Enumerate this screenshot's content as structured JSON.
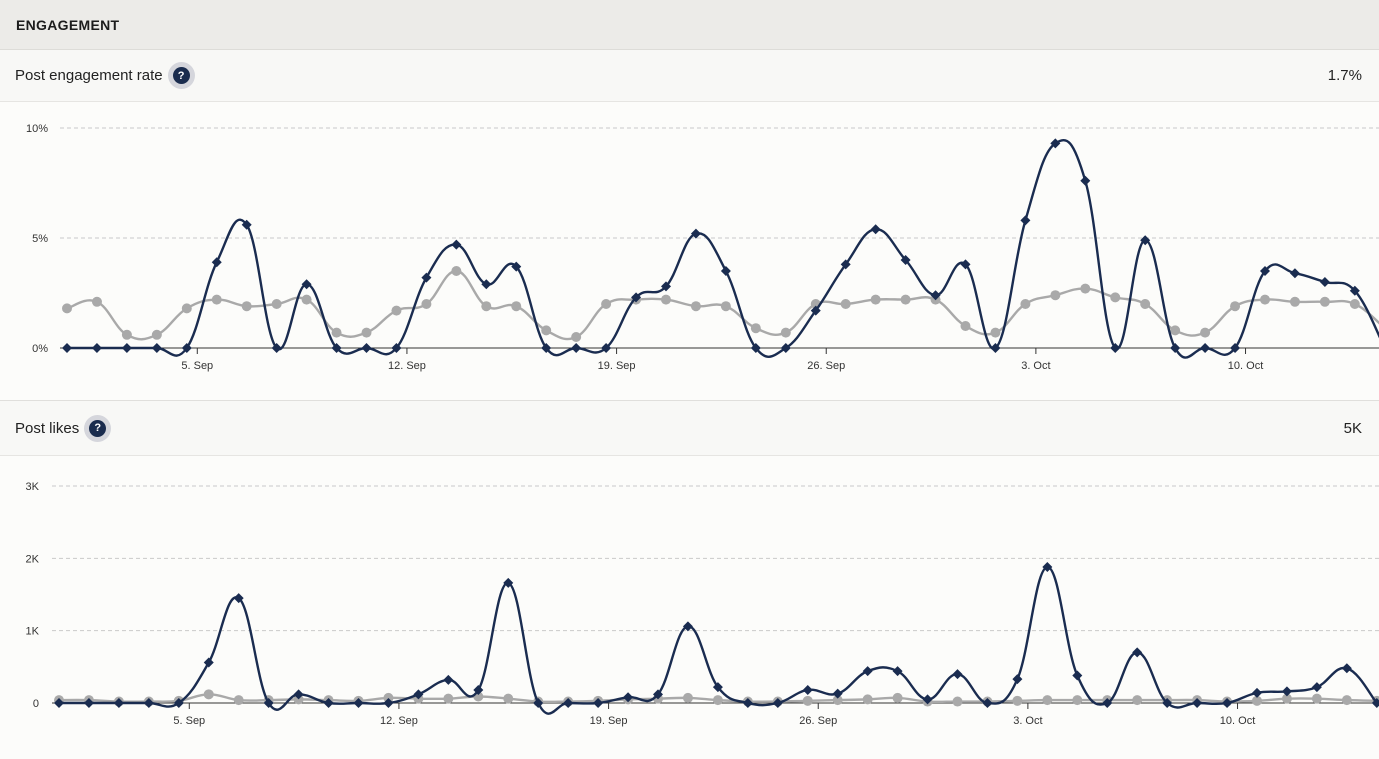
{
  "section": {
    "title": "ENGAGEMENT"
  },
  "metrics": [
    {
      "label": "Post engagement rate",
      "value": "1.7%",
      "help_icon": "question-circle-icon"
    },
    {
      "label": "Post likes",
      "value": "5K",
      "help_icon": "question-circle-icon"
    }
  ],
  "colors": {
    "primary": "#1a2c50",
    "comparison": "#a9a9a9",
    "help_bg": "#d5d6dc"
  },
  "chart_data": [
    {
      "type": "line",
      "title": "Post engagement rate",
      "x_tick_labels": [
        "5. Sep",
        "12. Sep",
        "19. Sep",
        "26. Sep",
        "3. Oct",
        "10. Oct"
      ],
      "y_tick_labels": [
        "0%",
        "5%",
        "10%"
      ],
      "ylim": [
        0,
        10
      ],
      "grid": true,
      "x": [
        "1 Sep",
        "2 Sep",
        "3 Sep",
        "4 Sep",
        "5 Sep",
        "6 Sep",
        "7 Sep",
        "8 Sep",
        "9 Sep",
        "10 Sep",
        "11 Sep",
        "12 Sep",
        "13 Sep",
        "14 Sep",
        "15 Sep",
        "16 Sep",
        "17 Sep",
        "18 Sep",
        "19 Sep",
        "20 Sep",
        "21 Sep",
        "22 Sep",
        "23 Sep",
        "24 Sep",
        "25 Sep",
        "26 Sep",
        "27 Sep",
        "28 Sep",
        "29 Sep",
        "30 Sep",
        "1 Oct",
        "2 Oct",
        "3 Oct",
        "4 Oct",
        "5 Oct",
        "6 Oct",
        "7 Oct",
        "8 Oct",
        "9 Oct",
        "10 Oct",
        "11 Oct",
        "12 Oct",
        "13 Oct",
        "14 Oct",
        "15 Oct"
      ],
      "series": [
        {
          "marker": "diamond",
          "color": "#1a2c50",
          "values": [
            0,
            0,
            0,
            0,
            0,
            3.9,
            5.6,
            0,
            2.9,
            0,
            0,
            0,
            3.2,
            4.7,
            2.9,
            3.7,
            0,
            0,
            0,
            2.3,
            2.8,
            5.2,
            3.5,
            0,
            0,
            1.7,
            3.8,
            5.4,
            4.0,
            2.4,
            3.8,
            0,
            5.8,
            9.3,
            7.6,
            0,
            4.9,
            0,
            0,
            0,
            3.5,
            3.4,
            3.0,
            2.6,
            0
          ]
        },
        {
          "marker": "circle",
          "color": "#a9a9a9",
          "values": [
            1.8,
            2.1,
            0.6,
            0.6,
            1.8,
            2.2,
            1.9,
            2.0,
            2.2,
            0.7,
            0.7,
            1.7,
            2.0,
            3.5,
            1.9,
            1.9,
            0.8,
            0.5,
            2.0,
            2.2,
            2.2,
            1.9,
            1.9,
            0.9,
            0.7,
            2.0,
            2.0,
            2.2,
            2.2,
            2.2,
            1.0,
            0.7,
            2.0,
            2.4,
            2.7,
            2.3,
            2.0,
            0.8,
            0.7,
            1.9,
            2.2,
            2.1,
            2.1,
            2.0,
            0.9
          ]
        }
      ]
    },
    {
      "type": "line",
      "title": "Post likes",
      "x_tick_labels": [
        "5. Sep",
        "12. Sep",
        "19. Sep",
        "26. Sep",
        "3. Oct",
        "10. Oct"
      ],
      "y_tick_labels": [
        "0",
        "1K",
        "2K",
        "3K"
      ],
      "ylim": [
        0,
        3000
      ],
      "grid": true,
      "x": [
        "1 Sep",
        "2 Sep",
        "3 Sep",
        "4 Sep",
        "5 Sep",
        "6 Sep",
        "7 Sep",
        "8 Sep",
        "9 Sep",
        "10 Sep",
        "11 Sep",
        "12 Sep",
        "13 Sep",
        "14 Sep",
        "15 Sep",
        "16 Sep",
        "17 Sep",
        "18 Sep",
        "19 Sep",
        "20 Sep",
        "21 Sep",
        "22 Sep",
        "23 Sep",
        "24 Sep",
        "25 Sep",
        "26 Sep",
        "27 Sep",
        "28 Sep",
        "29 Sep",
        "30 Sep",
        "1 Oct",
        "2 Oct",
        "3 Oct",
        "4 Oct",
        "5 Oct",
        "6 Oct",
        "7 Oct",
        "8 Oct",
        "9 Oct",
        "10 Oct",
        "11 Oct",
        "12 Oct",
        "13 Oct",
        "14 Oct",
        "15 Oct"
      ],
      "series": [
        {
          "marker": "diamond",
          "color": "#1a2c50",
          "values": [
            0,
            0,
            0,
            0,
            0,
            560,
            1450,
            0,
            120,
            0,
            0,
            0,
            120,
            320,
            180,
            1660,
            0,
            0,
            0,
            80,
            120,
            1060,
            220,
            0,
            0,
            180,
            130,
            440,
            440,
            50,
            400,
            0,
            330,
            1880,
            380,
            0,
            700,
            0,
            0,
            0,
            140,
            160,
            220,
            480,
            0
          ]
        },
        {
          "marker": "circle",
          "color": "#a9a9a9",
          "values": [
            40,
            40,
            20,
            20,
            30,
            120,
            40,
            40,
            50,
            40,
            30,
            70,
            60,
            60,
            90,
            60,
            20,
            20,
            30,
            50,
            60,
            70,
            40,
            20,
            20,
            30,
            40,
            50,
            70,
            20,
            20,
            20,
            30,
            40,
            40,
            40,
            40,
            40,
            40,
            20,
            30,
            60,
            60,
            40,
            30
          ]
        }
      ]
    }
  ]
}
